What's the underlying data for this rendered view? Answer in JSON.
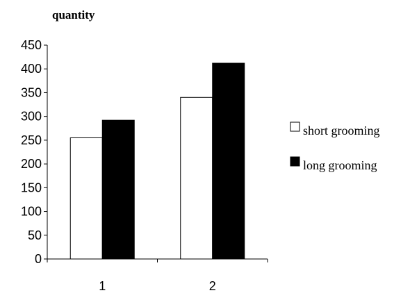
{
  "chart_data": {
    "type": "bar",
    "title": "",
    "xlabel": "",
    "ylabel": "quantity",
    "categories": [
      "1",
      "2"
    ],
    "ylim": [
      0,
      450
    ],
    "yticks": [
      "0",
      "50",
      "100",
      "150",
      "200",
      "250",
      "300",
      "350",
      "400",
      "450"
    ],
    "grid": false,
    "legend_position": "right",
    "series": [
      {
        "name": "short grooming",
        "values": [
          255,
          340
        ],
        "color": "#ffffff"
      },
      {
        "name": "long grooming",
        "values": [
          292,
          412
        ],
        "color": "#000000"
      }
    ]
  }
}
